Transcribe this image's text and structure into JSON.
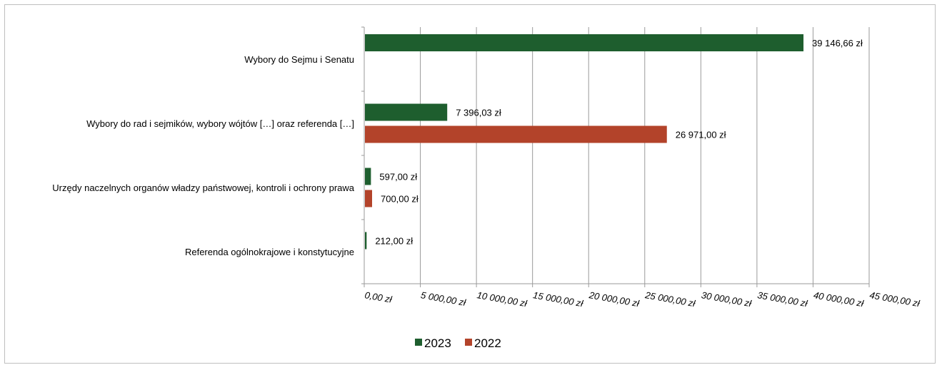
{
  "chart_data": {
    "type": "bar",
    "orientation": "horizontal",
    "categories": [
      "Wybory do Sejmu i Senatu",
      "Wybory do rad i sejmików, wybory wójtów […] oraz referenda […]",
      "Urzędy naczelnych organów władzy państwowej, kontroli i ochrony prawa",
      "Referenda ogólnokrajowe i konstytucyjne"
    ],
    "series": [
      {
        "name": "2023",
        "color": "#1e5e2e",
        "values": [
          39146.66,
          7396.03,
          597.0,
          212.0
        ],
        "labels": [
          "39 146,66 zł",
          "7 396,03 zł",
          "597,00 zł",
          "212,00 zł"
        ]
      },
      {
        "name": "2022",
        "color": "#b3432a",
        "values": [
          null,
          26971.0,
          700.0,
          null
        ],
        "labels": [
          null,
          "26 971,00 zł",
          "700,00 zł",
          null
        ]
      }
    ],
    "xlim": [
      0,
      45000
    ],
    "xticks": [
      0,
      5000,
      10000,
      15000,
      20000,
      25000,
      30000,
      35000,
      40000,
      45000
    ],
    "xtick_labels": [
      "0,00 zł",
      "5 000,00 zł",
      "10 000,00 zł",
      "15 000,00 zł",
      "20 000,00 zł",
      "25 000,00 zł",
      "30 000,00 zł",
      "35 000,00 zł",
      "40 000,00 zł",
      "45 000,00 zł"
    ],
    "grid": true,
    "legend_position": "bottom",
    "title": "",
    "xlabel": "",
    "ylabel": ""
  }
}
